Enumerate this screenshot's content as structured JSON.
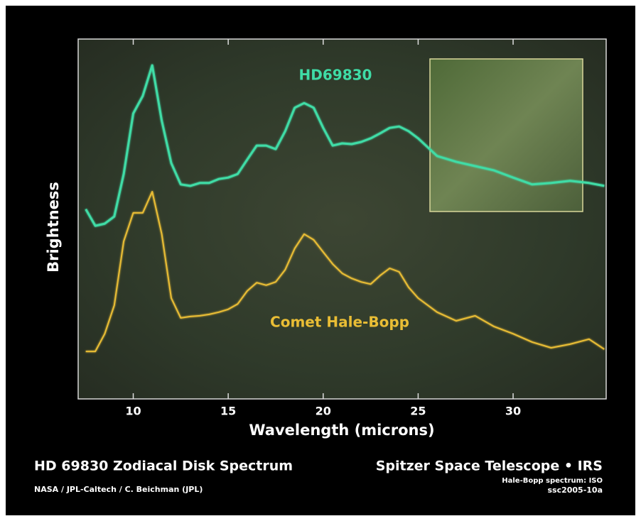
{
  "chart_data": {
    "type": "line",
    "title": "HD 69830 Zodiacal Disk Spectrum",
    "credit": "NASA / JPL-Caltech / C. Beichman (JPL)",
    "source": "Spitzer Space Telescope • IRS",
    "note": "Hale-Bopp spectrum: ISO",
    "id": "ssc2005-10a",
    "xlabel": "Wavelength (microns)",
    "ylabel": "Brightness",
    "xlim": [
      7.1,
      34.9
    ],
    "xticks": [
      10,
      15,
      20,
      25,
      30
    ],
    "ylim": [
      0,
      100
    ],
    "x": [
      7.5,
      8,
      8.5,
      9,
      9.5,
      10,
      10.5,
      11,
      11.5,
      12,
      12.5,
      13,
      13.5,
      14,
      14.5,
      15,
      15.5,
      16,
      16.5,
      17,
      17.5,
      18,
      18.5,
      19,
      19.5,
      20,
      20.5,
      21,
      21.5,
      22,
      22.5,
      23,
      23.5,
      24,
      24.5,
      25,
      26,
      27,
      28,
      29,
      30,
      31,
      32,
      33,
      34,
      34.8
    ],
    "series": [
      {
        "name": "HD69830",
        "color": "#3fdca6",
        "values": [
          52.7,
          48.1,
          48.7,
          50.7,
          62.5,
          79.3,
          84.2,
          92.7,
          77.3,
          65.5,
          59.6,
          59.2,
          60,
          60,
          61.1,
          61.5,
          62.5,
          66.5,
          70.4,
          70.4,
          69.4,
          74.4,
          80.9,
          82.2,
          80.9,
          75.3,
          70.4,
          71,
          70.8,
          71.4,
          72.4,
          73.8,
          75.3,
          75.7,
          74.4,
          72.4,
          67.5,
          65.9,
          64.7,
          63.5,
          61.5,
          59.6,
          60,
          60.6,
          60,
          59.2
        ]
      },
      {
        "name": "Comet Hale-Bopp",
        "color": "#e9bd35",
        "values": [
          13.2,
          13.2,
          18.1,
          26,
          43.8,
          51.7,
          51.7,
          57.6,
          45.8,
          28,
          22.5,
          22.9,
          23.1,
          23.5,
          24.1,
          24.9,
          26.4,
          30,
          32.3,
          31.6,
          32.5,
          35.9,
          41.8,
          45.8,
          44.2,
          40.8,
          37.5,
          34.9,
          33.5,
          32.5,
          31.9,
          34.3,
          36.3,
          35.3,
          31,
          28,
          24.1,
          21.7,
          23.1,
          20.1,
          18.1,
          15.8,
          14.2,
          15.2,
          16.6,
          13.8
        ]
      }
    ]
  }
}
